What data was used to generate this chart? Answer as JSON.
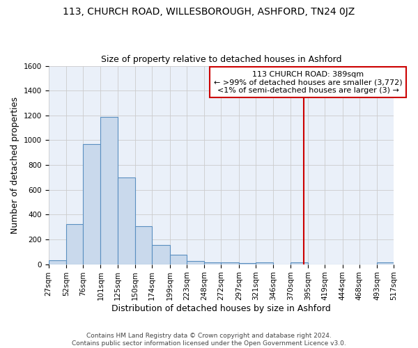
{
  "title": "113, CHURCH ROAD, WILLESBOROUGH, ASHFORD, TN24 0JZ",
  "subtitle": "Size of property relative to detached houses in Ashford",
  "xlabel": "Distribution of detached houses by size in Ashford",
  "ylabel": "Number of detached properties",
  "bin_labels": [
    "27sqm",
    "52sqm",
    "76sqm",
    "101sqm",
    "125sqm",
    "150sqm",
    "174sqm",
    "199sqm",
    "223sqm",
    "248sqm",
    "272sqm",
    "297sqm",
    "321sqm",
    "346sqm",
    "370sqm",
    "395sqm",
    "419sqm",
    "444sqm",
    "468sqm",
    "493sqm",
    "517sqm"
  ],
  "bin_edges": [
    27,
    52,
    76,
    101,
    125,
    150,
    174,
    199,
    223,
    248,
    272,
    297,
    321,
    346,
    370,
    395,
    419,
    444,
    468,
    493,
    517
  ],
  "bar_heights": [
    30,
    325,
    970,
    1190,
    700,
    305,
    155,
    75,
    25,
    15,
    15,
    10,
    15,
    0,
    15,
    0,
    0,
    0,
    0,
    15
  ],
  "bar_color": "#c9d9ec",
  "bar_edge_color": "#5a8fc0",
  "grid_color": "#cccccc",
  "background_color": "#eaf0f9",
  "red_line_x": 389,
  "red_line_color": "#cc0000",
  "annotation_line1": "113 CHURCH ROAD: 389sqm",
  "annotation_line2": "← >99% of detached houses are smaller (3,772)",
  "annotation_line3": "<1% of semi-detached houses are larger (3) →",
  "annotation_box_edge": "#cc0000",
  "annotation_box_bg": "#ffffff",
  "ylim": [
    0,
    1600
  ],
  "yticks": [
    0,
    200,
    400,
    600,
    800,
    1000,
    1200,
    1400,
    1600
  ],
  "footer_line1": "Contains HM Land Registry data © Crown copyright and database right 2024.",
  "footer_line2": "Contains public sector information licensed under the Open Government Licence v3.0.",
  "title_fontsize": 10,
  "subtitle_fontsize": 9,
  "axis_label_fontsize": 9,
  "tick_fontsize": 7.5,
  "annot_fontsize": 8
}
